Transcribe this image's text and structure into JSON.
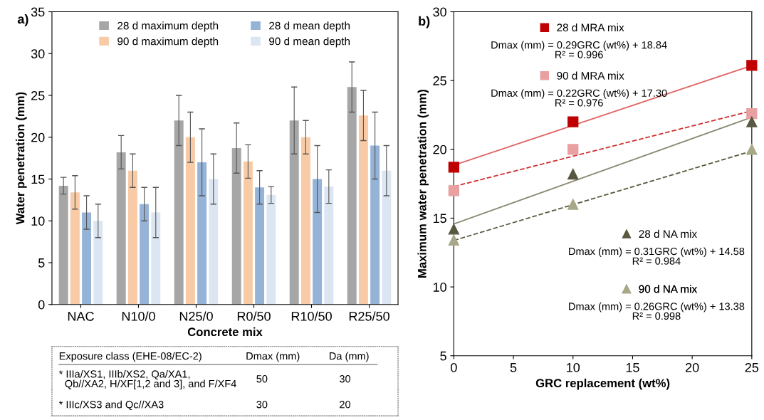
{
  "chart_data": [
    {
      "type": "bar",
      "title": "a)",
      "xlabel": "Concrete mix",
      "ylabel": "Water penetration (mm)",
      "categories": [
        "NAC",
        "N10/0",
        "N25/0",
        "R0/50",
        "R10/50",
        "R25/50"
      ],
      "series": [
        {
          "name": "28 d maximum depth",
          "color": "#a6a6a6",
          "values": [
            14.2,
            18.2,
            22,
            18.7,
            22,
            26
          ],
          "errors": [
            1,
            2,
            3,
            3,
            4,
            3
          ]
        },
        {
          "name": "90 d maximum depth",
          "color": "#f8cba6",
          "values": [
            13.4,
            16,
            20,
            17.1,
            20,
            22.6
          ],
          "errors": [
            2,
            2,
            3,
            2,
            2,
            3
          ]
        },
        {
          "name": "28 d mean depth",
          "color": "#95b3d7",
          "values": [
            11,
            12,
            17,
            14,
            15,
            19
          ],
          "errors": [
            2,
            2,
            4,
            2,
            4,
            4
          ]
        },
        {
          "name": "90 d mean depth",
          "color": "#dce6f2",
          "values": [
            10,
            11,
            15,
            13.1,
            14.1,
            16
          ],
          "errors": [
            2,
            3,
            3,
            1,
            2,
            3
          ]
        }
      ],
      "ylim": [
        0,
        35
      ],
      "yticks": [
        0,
        5,
        10,
        15,
        20,
        25,
        30,
        35
      ],
      "grid": false,
      "legend": "top",
      "annotations": [
        "Exposure class (EHE-08/EC-2)",
        "Dmax (mm)",
        "Da (mm)",
        "* IIIa/XS1, IIIb/XS2, Qa/XA1,\n  Qb//XA2, H/XF[1,2 and 3], and F/XF4",
        "50",
        "30",
        "* IIIc/XS3 and Qc//XA3",
        "30",
        "20"
      ]
    },
    {
      "type": "scatter",
      "title": "b)",
      "xlabel": "GRC replacement (wt%)",
      "ylabel": "Maximum water penetration (mm)",
      "x": [
        0,
        10,
        25
      ],
      "series": [
        {
          "name": "28 d MRA mix",
          "color": "#c00000",
          "marker": "square",
          "values": [
            18.7,
            22,
            26.1
          ]
        },
        {
          "name": "90 d MRA mix",
          "color": "#e8a0a0",
          "marker": "square",
          "values": [
            17,
            20,
            22.6
          ]
        },
        {
          "name": "28 d NA mix",
          "color": "#595941",
          "marker": "triangle",
          "values": [
            14.2,
            18.2,
            22
          ]
        },
        {
          "name": "90 d NA mix",
          "color": "#a8a888",
          "marker": "triangle",
          "values": [
            13.4,
            16,
            20
          ]
        },
        {
          "type": "line",
          "color": "#e06666",
          "line_style": "solid",
          "values": [
            18.84,
            21.74,
            26.09
          ]
        },
        {
          "type": "line",
          "color": "#d03030",
          "line_style": "dashed",
          "values": [
            17.3,
            19.5,
            22.8
          ]
        },
        {
          "type": "line",
          "color": "#8a8a72",
          "line_style": "solid",
          "values": [
            14.58,
            17.68,
            22.33
          ]
        },
        {
          "type": "line",
          "color": "#595941",
          "line_style": "dashed",
          "values": [
            13.38,
            15.98,
            19.88
          ]
        }
      ],
      "xlim": [
        0,
        25
      ],
      "xticks": [
        0,
        5,
        10,
        15,
        20,
        25
      ],
      "ylim": [
        5,
        30
      ],
      "yticks": [
        5,
        10,
        15,
        20,
        25,
        30
      ],
      "grid": false,
      "legend": "top",
      "annotations": [
        "Dmax (mm) = 0.29GRC (wt%) + 18.84\nR² = 0.996",
        "Dmax (mm) = 0.22GRC (wt%) + 17.30\nR² = 0.976",
        "Dmax (mm) = 0.31GRC (wt%) + 14.58\nR² = 0.984",
        "Dmax (mm) = 0.26GRC (wt%) + 13.38\nR² = 0.998"
      ]
    }
  ]
}
